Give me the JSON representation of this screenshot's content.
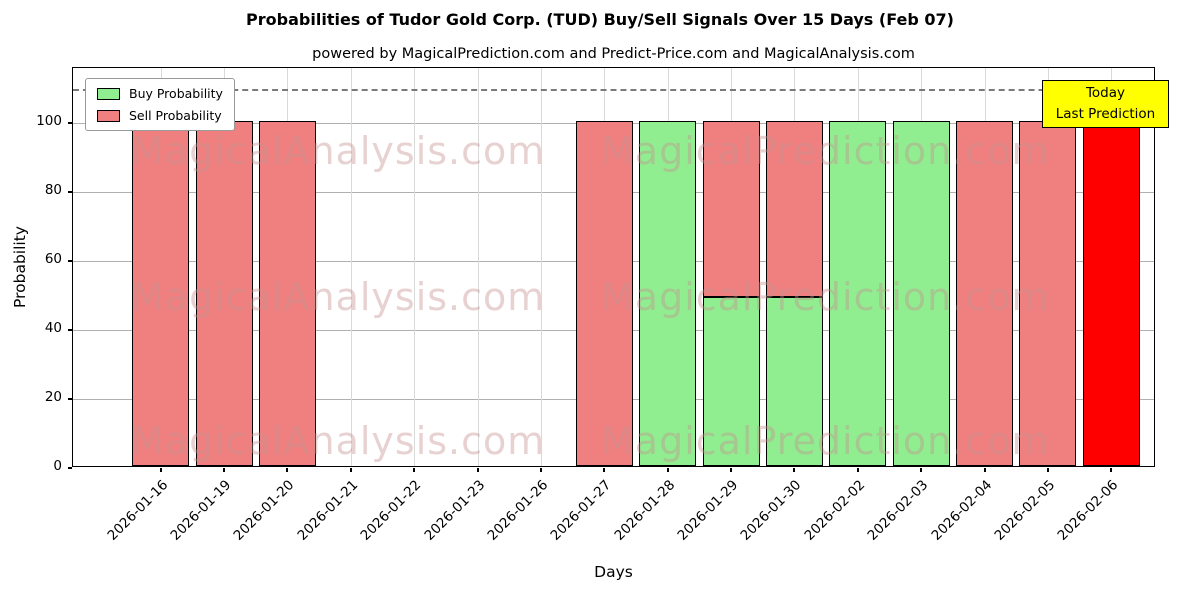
{
  "chart_data": {
    "type": "bar",
    "stacked": true,
    "title": "Probabilities of Tudor Gold Corp. (TUD) Buy/Sell Signals Over 15 Days (Feb 07)",
    "subtitle": "powered by MagicalPrediction.com and Predict-Price.com and MagicalAnalysis.com",
    "xlabel": "Days",
    "ylabel": "Probability",
    "ylim": [
      0,
      116
    ],
    "yticks": [
      0,
      20,
      40,
      60,
      80,
      100
    ],
    "dashed_line_y": 110,
    "grid": true,
    "legend_position": "upper left",
    "categories": [
      "2026-01-16",
      "2026-01-19",
      "2026-01-20",
      "2026-01-21",
      "2026-01-22",
      "2026-01-23",
      "2026-01-26",
      "2026-01-27",
      "2026-01-28",
      "2026-01-29",
      "2026-01-30",
      "2026-02-02",
      "2026-02-03",
      "2026-02-04",
      "2026-02-05",
      "2026-02-06"
    ],
    "series": [
      {
        "name": "Buy Probability",
        "key": "buy",
        "color": "#90ee90",
        "values": [
          0,
          0,
          0,
          0,
          0,
          0,
          0,
          0,
          100,
          49,
          49,
          100,
          100,
          0,
          0,
          0
        ]
      },
      {
        "name": "Sell Probability",
        "key": "sell",
        "color": "#f08080",
        "values": [
          100,
          100,
          100,
          0,
          0,
          0,
          0,
          100,
          0,
          51,
          51,
          0,
          0,
          100,
          100,
          0
        ]
      },
      {
        "name": "Today (Last Prediction)",
        "key": "today",
        "color": "#ff0000",
        "values": [
          0,
          0,
          0,
          0,
          0,
          0,
          0,
          0,
          0,
          0,
          0,
          0,
          0,
          0,
          0,
          100
        ]
      }
    ]
  },
  "legend": [
    {
      "label": "Buy Probability",
      "color": "#90ee90"
    },
    {
      "label": "Sell Probability",
      "color": "#f08080"
    }
  ],
  "annotation": {
    "line1": "Today",
    "line2": "Last Prediction",
    "bg": "#ffff00"
  },
  "watermarks": [
    "MagicalAnalysis.com",
    "MagicalPrediction.com"
  ]
}
